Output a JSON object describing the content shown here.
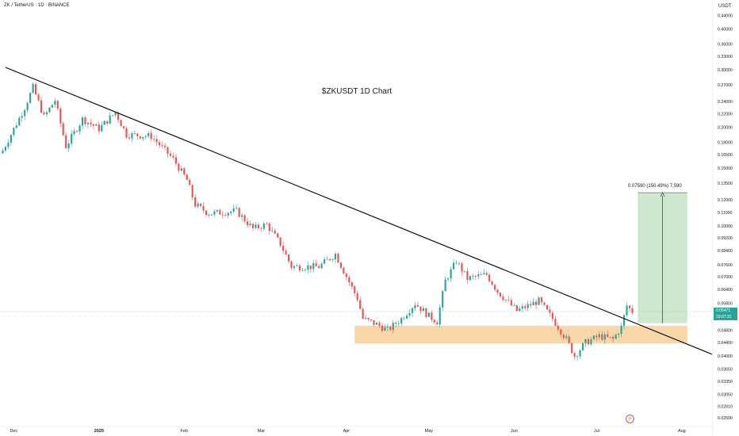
{
  "header": {
    "symbol_text": "ZK / TetherUS · 1D · BINANCE",
    "currency": "USDT"
  },
  "last_price": {
    "value": "0.05471",
    "countdown": "19:07:31"
  },
  "measure": {
    "label": "0.07590 (150.49%) 7,590"
  },
  "icons": {
    "flash": "flash-icon"
  },
  "colors": {
    "up": "#26a69a",
    "down": "#ef5350",
    "zone": "#f7c98b",
    "target": "#c8e6c9",
    "trendline": "#000000",
    "last_price": "#26a69a"
  },
  "chart_data": {
    "type": "candlestick",
    "title": "$ZKUSDT 1D Chart",
    "yscale": "log",
    "ylim": [
      0.0245,
      0.49
    ],
    "xlim": [
      "2024-11-26",
      "2025-08-12"
    ],
    "y_ticks": [
      "0.44000",
      "0.40000",
      "0.36000",
      "0.33000",
      "0.30000",
      "0.27000",
      "0.24000",
      "0.22000",
      "0.20000",
      "0.18000",
      "0.16500",
      "0.15000",
      "0.13500",
      "0.12000",
      "0.11000",
      "0.10000",
      "0.09200",
      "0.08400",
      "0.07600",
      "0.07000",
      "0.06400",
      "0.05800",
      "0.05300",
      "0.04800",
      "0.04400",
      "0.04000",
      "0.03650",
      "0.03350",
      "0.03050",
      "0.02810",
      "0.02590"
    ],
    "x_ticks": [
      {
        "label": "Dec",
        "date": "2024-12-01"
      },
      {
        "label": "2025",
        "date": "2025-01-01"
      },
      {
        "label": "Feb",
        "date": "2025-02-01"
      },
      {
        "label": "Mar",
        "date": "2025-03-01"
      },
      {
        "label": "Apr",
        "date": "2025-04-01"
      },
      {
        "label": "May",
        "date": "2025-05-01"
      },
      {
        "label": "Jun",
        "date": "2025-06-01"
      },
      {
        "label": "Jul",
        "date": "2025-07-01"
      },
      {
        "label": "Aug",
        "date": "2025-08-01"
      }
    ],
    "closes": [
      {
        "date": "2024-11-27",
        "close": 0.17
      },
      {
        "date": "2024-12-05",
        "close": 0.23
      },
      {
        "date": "2024-12-08",
        "close": 0.265
      },
      {
        "date": "2024-12-12",
        "close": 0.215
      },
      {
        "date": "2024-12-16",
        "close": 0.242
      },
      {
        "date": "2024-12-20",
        "close": 0.175
      },
      {
        "date": "2024-12-26",
        "close": 0.212
      },
      {
        "date": "2025-01-01",
        "close": 0.198
      },
      {
        "date": "2025-01-07",
        "close": 0.222
      },
      {
        "date": "2025-01-11",
        "close": 0.19
      },
      {
        "date": "2025-01-20",
        "close": 0.188
      },
      {
        "date": "2025-01-28",
        "close": 0.16
      },
      {
        "date": "2025-02-02",
        "close": 0.138
      },
      {
        "date": "2025-02-05",
        "close": 0.116
      },
      {
        "date": "2025-02-10",
        "close": 0.109
      },
      {
        "date": "2025-02-20",
        "close": 0.111
      },
      {
        "date": "2025-02-26",
        "close": 0.098
      },
      {
        "date": "2025-03-03",
        "close": 0.101
      },
      {
        "date": "2025-03-08",
        "close": 0.088
      },
      {
        "date": "2025-03-12",
        "close": 0.075
      },
      {
        "date": "2025-03-22",
        "close": 0.075
      },
      {
        "date": "2025-03-28",
        "close": 0.082
      },
      {
        "date": "2025-04-01",
        "close": 0.07
      },
      {
        "date": "2025-04-05",
        "close": 0.06
      },
      {
        "date": "2025-04-07",
        "close": 0.052
      },
      {
        "date": "2025-04-12",
        "close": 0.05
      },
      {
        "date": "2025-04-16",
        "close": 0.048
      },
      {
        "date": "2025-04-21",
        "close": 0.052
      },
      {
        "date": "2025-04-26",
        "close": 0.058
      },
      {
        "date": "2025-05-01",
        "close": 0.053
      },
      {
        "date": "2025-05-04",
        "close": 0.051
      },
      {
        "date": "2025-05-07",
        "close": 0.068
      },
      {
        "date": "2025-05-11",
        "close": 0.078
      },
      {
        "date": "2025-05-15",
        "close": 0.069
      },
      {
        "date": "2025-05-22",
        "close": 0.071
      },
      {
        "date": "2025-05-26",
        "close": 0.063
      },
      {
        "date": "2025-06-02",
        "close": 0.055
      },
      {
        "date": "2025-06-10",
        "close": 0.059
      },
      {
        "date": "2025-06-15",
        "close": 0.052
      },
      {
        "date": "2025-06-20",
        "close": 0.045
      },
      {
        "date": "2025-06-23",
        "close": 0.04
      },
      {
        "date": "2025-06-27",
        "close": 0.044
      },
      {
        "date": "2025-07-02",
        "close": 0.046
      },
      {
        "date": "2025-07-07",
        "close": 0.045
      },
      {
        "date": "2025-07-10",
        "close": 0.049
      },
      {
        "date": "2025-07-12",
        "close": 0.057
      },
      {
        "date": "2025-07-14",
        "close": 0.05471
      }
    ],
    "trendline": [
      {
        "date": "2024-11-28",
        "price": 0.305
      },
      {
        "date": "2025-08-12",
        "price": 0.0405
      }
    ],
    "support_zone": {
      "from": "2025-04-04",
      "to": "2025-08-03",
      "top": 0.0495,
      "bottom": 0.0437
    },
    "target_box": {
      "from": "2025-07-16",
      "to": "2025-08-03",
      "top": 0.1263,
      "bottom": 0.0504
    },
    "last_price_line": 0.05471
  }
}
